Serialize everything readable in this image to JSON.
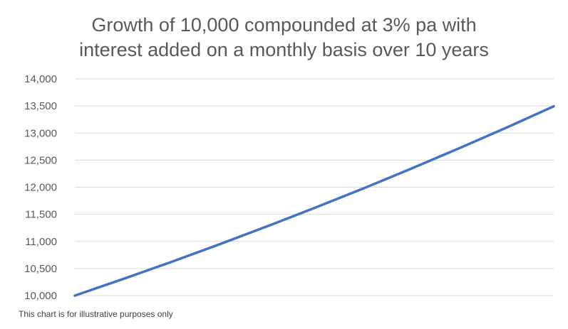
{
  "title_lines": [
    "Growth of 10,000 compounded at 3% pa with",
    "interest added on a monthly basis over 10 years"
  ],
  "footnote": "This chart is for illustrative purposes only",
  "chart_data": {
    "type": "line",
    "title": "Growth of 10,000 compounded at 3% pa with interest added on a monthly basis over 10 years",
    "xlabel": "",
    "ylabel": "",
    "ylim": [
      10000,
      14000
    ],
    "yticks": [
      10000,
      10500,
      11000,
      11500,
      12000,
      12500,
      13000,
      13500,
      14000
    ],
    "ytick_labels": [
      "10,000",
      "10,500",
      "11,000",
      "11,500",
      "12,000",
      "12,500",
      "13,000",
      "13,500",
      "14,000"
    ],
    "x_ticks_shown": false,
    "grid": true,
    "legend": "none",
    "colors": {
      "line": "#4472C4",
      "grid": "#D9D9D9",
      "text": "#595959"
    },
    "series": [
      {
        "x": [
          0,
          12,
          24,
          36,
          48,
          60,
          72,
          84,
          96,
          108,
          120
        ],
        "values": [
          10000,
          10304,
          10617,
          10940,
          11273,
          11616,
          11969,
          12334,
          12709,
          13095,
          13494
        ]
      }
    ]
  }
}
